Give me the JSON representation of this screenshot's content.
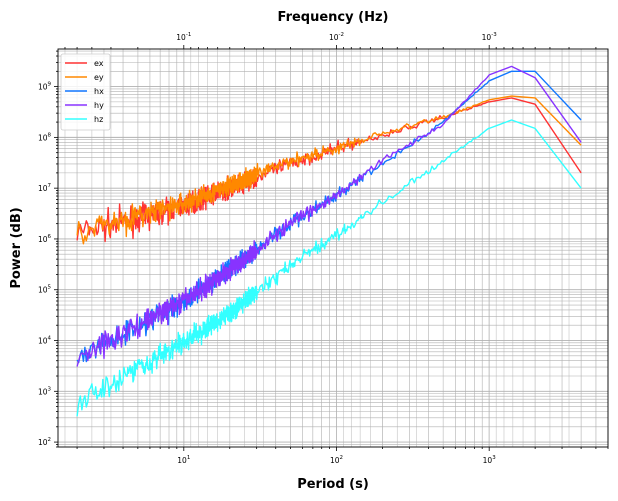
{
  "chart_data": {
    "type": "line",
    "title": "",
    "xlabel": "Period (s)",
    "ylabel": "Power (dB)",
    "x2label": "Frequency (Hz)",
    "xscale": "log",
    "yscale": "log",
    "xlim": [
      1.5,
      6000
    ],
    "ylim": [
      80,
      5500000000
    ],
    "grid": true,
    "legend_location": "upper-left",
    "x_tick_labels": [
      "10^1",
      "10^2",
      "10^3"
    ],
    "x2_tick_labels": [
      "10^-1",
      "10^-2",
      "10^-3"
    ],
    "y_tick_labels": [
      "10^2",
      "10^3",
      "10^4",
      "10^5",
      "10^6",
      "10^7",
      "10^8",
      "10^9"
    ],
    "series": [
      {
        "name": "ex",
        "color": "#ff3333",
        "x": [
          2,
          5,
          10,
          20,
          50,
          100,
          200,
          500,
          1000,
          1400,
          2000,
          4000
        ],
        "y": [
          1300000,
          2500000,
          4500000,
          10000000,
          30000000,
          60000000,
          110000000,
          250000000,
          500000000,
          600000000,
          450000000,
          20000000
        ]
      },
      {
        "name": "ey",
        "color": "#ff8800",
        "x": [
          2,
          5,
          10,
          20,
          50,
          100,
          200,
          500,
          1000,
          1400,
          2000,
          4000
        ],
        "y": [
          1500000,
          2800000,
          5000000,
          11000000,
          35000000,
          60000000,
          120000000,
          250000000,
          550000000,
          650000000,
          600000000,
          70000000
        ]
      },
      {
        "name": "hx",
        "color": "#1177ff",
        "x": [
          2,
          5,
          10,
          20,
          50,
          100,
          200,
          500,
          1000,
          1400,
          2000,
          4000
        ],
        "y": [
          4500,
          20000,
          60000,
          250000,
          2000000,
          7000000,
          30000000,
          200000000,
          1300000000,
          2000000000,
          2000000000,
          220000000
        ]
      },
      {
        "name": "hy",
        "color": "#8833ff",
        "x": [
          2,
          5,
          10,
          20,
          50,
          100,
          200,
          500,
          1000,
          1400,
          2000,
          4000
        ],
        "y": [
          4500,
          20000,
          60000,
          250000,
          2000000,
          7000000,
          35000000,
          180000000,
          1700000000,
          2500000000,
          1500000000,
          80000000
        ]
      },
      {
        "name": "hz",
        "color": "#33ffff",
        "x": [
          2,
          5,
          10,
          20,
          50,
          100,
          200,
          500,
          1000,
          1400,
          2000,
          4000
        ],
        "y": [
          600,
          3000,
          9000,
          35000,
          300000,
          1200000,
          5000000,
          35000000,
          150000000,
          220000000,
          150000000,
          10000000
        ]
      }
    ]
  }
}
